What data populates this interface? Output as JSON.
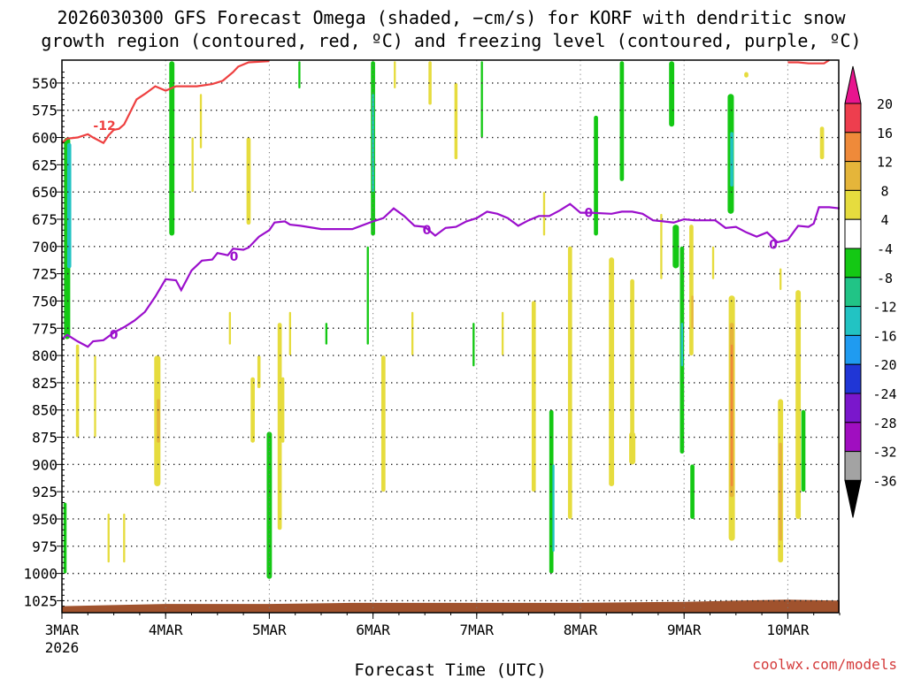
{
  "chart_data": {
    "type": "heatmap",
    "title_line1": "2026030300 GFS Forecast Omega (shaded, −cm/s) for KORF with dendritic snow",
    "title_line2": "growth region (contoured, red, ºC) and freezing level (contoured, purple, ºC)",
    "xlabel": "Forecast Time (UTC)",
    "credit": "coolwx.com/models",
    "x_ticks": [
      {
        "label": "3MAR",
        "sub": "2026",
        "day": 0
      },
      {
        "label": "4MAR",
        "sub": "",
        "day": 1
      },
      {
        "label": "5MAR",
        "sub": "",
        "day": 2
      },
      {
        "label": "6MAR",
        "sub": "",
        "day": 3
      },
      {
        "label": "7MAR",
        "sub": "",
        "day": 4
      },
      {
        "label": "8MAR",
        "sub": "",
        "day": 5
      },
      {
        "label": "9MAR",
        "sub": "",
        "day": 6
      },
      {
        "label": "10MAR",
        "sub": "",
        "day": 7
      }
    ],
    "x_range_days": [
      0,
      7.5
    ],
    "y_ticks": [
      "550",
      "575",
      "600",
      "625",
      "650",
      "675",
      "700",
      "725",
      "750",
      "775",
      "800",
      "825",
      "850",
      "875",
      "900",
      "925",
      "950",
      "975",
      "1000",
      "1025"
    ],
    "y_range_hpa": [
      529,
      1036
    ],
    "y_axis_inverted": true,
    "grid": true,
    "colorbar": {
      "labels": [
        "20",
        "16",
        "12",
        "8",
        "4",
        "-4",
        "-8",
        "-12",
        "-16",
        "-20",
        "-24",
        "-28",
        "-32",
        "-36"
      ],
      "colors": [
        "#ee3e4e",
        "#ef8a3a",
        "#e5b53a",
        "#e6dc3e",
        "#ffffff",
        "#14c814",
        "#21c486",
        "#22c3c3",
        "#1f9bf0",
        "#2036d6",
        "#7a17cc",
        "#a00ec0",
        "#a3a3a3"
      ],
      "top_arrow_color": "#e8158e",
      "bottom_arrow_color": "#000000"
    },
    "dgz_contour": {
      "label": "-12",
      "color": "#ee4040",
      "points": [
        [
          0.0,
          605
        ],
        [
          0.05,
          601
        ],
        [
          0.15,
          600
        ],
        [
          0.25,
          597
        ],
        [
          0.3,
          600
        ],
        [
          0.4,
          605
        ],
        [
          0.45,
          598
        ],
        [
          0.5,
          593
        ],
        [
          0.55,
          592
        ],
        [
          0.6,
          588
        ],
        [
          0.72,
          565
        ],
        [
          0.8,
          560
        ],
        [
          0.9,
          553
        ],
        [
          1.0,
          557
        ],
        [
          1.1,
          553
        ],
        [
          1.3,
          553
        ],
        [
          1.45,
          551
        ],
        [
          1.55,
          548
        ],
        [
          1.65,
          540
        ],
        [
          1.7,
          535
        ],
        [
          1.8,
          531
        ],
        [
          2.0,
          530
        ]
      ],
      "right_points": [
        [
          7.0,
          531
        ],
        [
          7.1,
          531
        ],
        [
          7.2,
          532
        ],
        [
          7.35,
          532
        ],
        [
          7.4,
          529
        ]
      ]
    },
    "freezing_contour": {
      "label": "0",
      "color": "#9b0fcc",
      "points": [
        [
          0.0,
          785
        ],
        [
          0.05,
          781
        ],
        [
          0.15,
          787
        ],
        [
          0.25,
          792
        ],
        [
          0.3,
          787
        ],
        [
          0.4,
          786
        ],
        [
          0.5,
          779
        ],
        [
          0.6,
          774
        ],
        [
          0.7,
          768
        ],
        [
          0.8,
          760
        ],
        [
          0.9,
          746
        ],
        [
          1.0,
          730
        ],
        [
          1.1,
          731
        ],
        [
          1.15,
          740
        ],
        [
          1.25,
          722
        ],
        [
          1.35,
          713
        ],
        [
          1.45,
          712
        ],
        [
          1.5,
          706
        ],
        [
          1.6,
          708
        ],
        [
          1.65,
          702
        ],
        [
          1.75,
          703
        ],
        [
          1.8,
          701
        ],
        [
          1.9,
          691
        ],
        [
          2.0,
          685
        ],
        [
          2.05,
          678
        ],
        [
          2.15,
          677
        ],
        [
          2.2,
          680
        ],
        [
          2.3,
          681
        ],
        [
          2.5,
          684
        ],
        [
          2.6,
          684
        ],
        [
          2.8,
          684
        ],
        [
          3.0,
          677
        ],
        [
          3.1,
          674
        ],
        [
          3.2,
          665
        ],
        [
          3.3,
          672
        ],
        [
          3.4,
          681
        ],
        [
          3.5,
          682
        ],
        [
          3.6,
          690
        ],
        [
          3.7,
          683
        ],
        [
          3.8,
          682
        ],
        [
          3.9,
          677
        ],
        [
          4.0,
          674
        ],
        [
          4.1,
          668
        ],
        [
          4.2,
          670
        ],
        [
          4.3,
          674
        ],
        [
          4.4,
          681
        ],
        [
          4.5,
          676
        ],
        [
          4.6,
          672
        ],
        [
          4.7,
          672
        ],
        [
          4.8,
          667
        ],
        [
          4.9,
          661
        ],
        [
          5.0,
          669
        ],
        [
          5.1,
          669
        ],
        [
          5.3,
          670
        ],
        [
          5.4,
          668
        ],
        [
          5.5,
          668
        ],
        [
          5.6,
          670
        ],
        [
          5.7,
          676
        ],
        [
          5.8,
          677
        ],
        [
          5.9,
          678
        ],
        [
          6.0,
          675
        ],
        [
          6.1,
          676
        ],
        [
          6.2,
          676
        ],
        [
          6.3,
          676
        ],
        [
          6.4,
          683
        ],
        [
          6.5,
          682
        ],
        [
          6.6,
          687
        ],
        [
          6.7,
          691
        ],
        [
          6.8,
          687
        ],
        [
          6.9,
          696
        ],
        [
          7.0,
          694
        ],
        [
          7.1,
          681
        ],
        [
          7.2,
          682
        ],
        [
          7.25,
          679
        ],
        [
          7.3,
          664
        ],
        [
          7.4,
          664
        ],
        [
          7.5,
          665
        ]
      ]
    },
    "omega_patches": [
      {
        "t": 0.05,
        "w": 0.06,
        "p1": 600,
        "p2": 785,
        "c": "#14c814"
      },
      {
        "t": 0.07,
        "w": 0.04,
        "p1": 605,
        "p2": 720,
        "c": "#22c3c3"
      },
      {
        "t": 0.03,
        "w": 0.03,
        "p1": 935,
        "p2": 1000,
        "c": "#14c814"
      },
      {
        "t": 0.32,
        "w": 0.02,
        "p1": 800,
        "p2": 875,
        "c": "#e6dc3e"
      },
      {
        "t": 0.15,
        "w": 0.03,
        "p1": 790,
        "p2": 875,
        "c": "#e6dc3e"
      },
      {
        "t": 0.45,
        "w": 0.02,
        "p1": 945,
        "p2": 990,
        "c": "#e6dc3e"
      },
      {
        "t": 0.6,
        "w": 0.02,
        "p1": 945,
        "p2": 990,
        "c": "#e6dc3e"
      },
      {
        "t": 0.92,
        "w": 0.06,
        "p1": 800,
        "p2": 920,
        "c": "#e6dc3e"
      },
      {
        "t": 0.93,
        "w": 0.03,
        "p1": 840,
        "p2": 880,
        "c": "#e5b53a"
      },
      {
        "t": 1.06,
        "w": 0.05,
        "p1": 530,
        "p2": 690,
        "c": "#14c814"
      },
      {
        "t": 1.26,
        "w": 0.02,
        "p1": 600,
        "p2": 650,
        "c": "#e6dc3e"
      },
      {
        "t": 1.34,
        "w": 0.02,
        "p1": 560,
        "p2": 610,
        "c": "#e6dc3e"
      },
      {
        "t": 1.62,
        "w": 0.02,
        "p1": 760,
        "p2": 790,
        "c": "#e6dc3e"
      },
      {
        "t": 1.8,
        "w": 0.04,
        "p1": 600,
        "p2": 680,
        "c": "#e6dc3e"
      },
      {
        "t": 1.84,
        "w": 0.04,
        "p1": 820,
        "p2": 880,
        "c": "#e6dc3e"
      },
      {
        "t": 1.9,
        "w": 0.03,
        "p1": 800,
        "p2": 830,
        "c": "#e6dc3e"
      },
      {
        "t": 2.0,
        "w": 0.05,
        "p1": 870,
        "p2": 1005,
        "c": "#14c814"
      },
      {
        "t": 2.1,
        "w": 0.04,
        "p1": 770,
        "p2": 960,
        "c": "#e6dc3e"
      },
      {
        "t": 2.13,
        "w": 0.03,
        "p1": 820,
        "p2": 880,
        "c": "#e6dc3e"
      },
      {
        "t": 2.2,
        "w": 0.02,
        "p1": 760,
        "p2": 800,
        "c": "#e6dc3e"
      },
      {
        "t": 2.29,
        "w": 0.02,
        "p1": 530,
        "p2": 555,
        "c": "#14c814"
      },
      {
        "t": 2.55,
        "w": 0.02,
        "p1": 770,
        "p2": 790,
        "c": "#14c814"
      },
      {
        "t": 2.95,
        "w": 0.02,
        "p1": 700,
        "p2": 790,
        "c": "#14c814"
      },
      {
        "t": 3.0,
        "w": 0.04,
        "p1": 530,
        "p2": 690,
        "c": "#14c814"
      },
      {
        "t": 3.0,
        "w": 0.02,
        "p1": 560,
        "p2": 650,
        "c": "#22c3c3"
      },
      {
        "t": 3.1,
        "w": 0.04,
        "p1": 800,
        "p2": 925,
        "c": "#e6dc3e"
      },
      {
        "t": 3.21,
        "w": 0.02,
        "p1": 530,
        "p2": 555,
        "c": "#e6dc3e"
      },
      {
        "t": 3.38,
        "w": 0.02,
        "p1": 760,
        "p2": 800,
        "c": "#e6dc3e"
      },
      {
        "t": 3.55,
        "w": 0.03,
        "p1": 530,
        "p2": 570,
        "c": "#e6dc3e"
      },
      {
        "t": 3.8,
        "w": 0.03,
        "p1": 550,
        "p2": 620,
        "c": "#e6dc3e"
      },
      {
        "t": 3.97,
        "w": 0.02,
        "p1": 770,
        "p2": 810,
        "c": "#14c814"
      },
      {
        "t": 4.05,
        "w": 0.02,
        "p1": 530,
        "p2": 600,
        "c": "#14c814"
      },
      {
        "t": 4.25,
        "w": 0.02,
        "p1": 760,
        "p2": 800,
        "c": "#e6dc3e"
      },
      {
        "t": 4.55,
        "w": 0.04,
        "p1": 750,
        "p2": 925,
        "c": "#e6dc3e"
      },
      {
        "t": 4.65,
        "w": 0.02,
        "p1": 650,
        "p2": 690,
        "c": "#e6dc3e"
      },
      {
        "t": 4.72,
        "w": 0.04,
        "p1": 850,
        "p2": 1000,
        "c": "#14c814"
      },
      {
        "t": 4.74,
        "w": 0.02,
        "p1": 900,
        "p2": 980,
        "c": "#22c3c3"
      },
      {
        "t": 4.9,
        "w": 0.04,
        "p1": 700,
        "p2": 950,
        "c": "#e6dc3e"
      },
      {
        "t": 5.15,
        "w": 0.04,
        "p1": 580,
        "p2": 690,
        "c": "#14c814"
      },
      {
        "t": 5.3,
        "w": 0.05,
        "p1": 710,
        "p2": 920,
        "c": "#e6dc3e"
      },
      {
        "t": 5.4,
        "w": 0.04,
        "p1": 530,
        "p2": 640,
        "c": "#14c814"
      },
      {
        "t": 5.5,
        "w": 0.04,
        "p1": 730,
        "p2": 890,
        "c": "#e6dc3e"
      },
      {
        "t": 5.5,
        "w": 0.06,
        "p1": 870,
        "p2": 900,
        "c": "#e6dc3e"
      },
      {
        "t": 5.78,
        "w": 0.02,
        "p1": 670,
        "p2": 730,
        "c": "#e6dc3e"
      },
      {
        "t": 5.88,
        "w": 0.05,
        "p1": 530,
        "p2": 590,
        "c": "#14c814"
      },
      {
        "t": 5.98,
        "w": 0.04,
        "p1": 700,
        "p2": 890,
        "c": "#14c814"
      },
      {
        "t": 5.98,
        "w": 0.02,
        "p1": 770,
        "p2": 810,
        "c": "#22c3c3"
      },
      {
        "t": 5.92,
        "w": 0.06,
        "p1": 680,
        "p2": 720,
        "c": "#14c814"
      },
      {
        "t": 6.07,
        "w": 0.04,
        "p1": 680,
        "p2": 800,
        "c": "#e6dc3e"
      },
      {
        "t": 6.08,
        "w": 0.02,
        "p1": 745,
        "p2": 775,
        "c": "#e5b53a"
      },
      {
        "t": 6.08,
        "w": 0.04,
        "p1": 900,
        "p2": 950,
        "c": "#14c814"
      },
      {
        "t": 6.28,
        "w": 0.02,
        "p1": 700,
        "p2": 730,
        "c": "#e6dc3e"
      },
      {
        "t": 6.45,
        "w": 0.06,
        "p1": 560,
        "p2": 670,
        "c": "#14c814"
      },
      {
        "t": 6.46,
        "w": 0.03,
        "p1": 595,
        "p2": 645,
        "c": "#22c3c3"
      },
      {
        "t": 6.46,
        "w": 0.06,
        "p1": 745,
        "p2": 970,
        "c": "#e6dc3e"
      },
      {
        "t": 6.46,
        "w": 0.04,
        "p1": 770,
        "p2": 930,
        "c": "#e5b53a"
      },
      {
        "t": 6.46,
        "w": 0.02,
        "p1": 790,
        "p2": 920,
        "c": "#ef8a3a"
      },
      {
        "t": 6.93,
        "w": 0.02,
        "p1": 720,
        "p2": 740,
        "c": "#e6dc3e"
      },
      {
        "t": 6.93,
        "w": 0.05,
        "p1": 840,
        "p2": 990,
        "c": "#e6dc3e"
      },
      {
        "t": 6.93,
        "w": 0.03,
        "p1": 880,
        "p2": 970,
        "c": "#e5b53a"
      },
      {
        "t": 7.1,
        "w": 0.05,
        "p1": 740,
        "p2": 950,
        "c": "#e6dc3e"
      },
      {
        "t": 7.15,
        "w": 0.04,
        "p1": 850,
        "p2": 925,
        "c": "#14c814"
      },
      {
        "t": 7.33,
        "w": 0.04,
        "p1": 590,
        "p2": 620,
        "c": "#e6dc3e"
      },
      {
        "t": 6.6,
        "w": 0.04,
        "p1": 540,
        "p2": 545,
        "c": "#e6dc3e"
      }
    ]
  }
}
